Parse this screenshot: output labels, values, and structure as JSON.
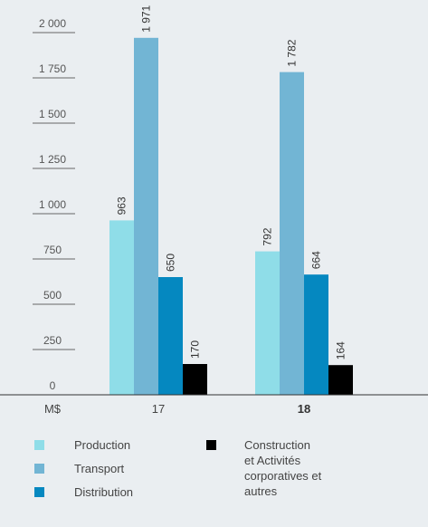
{
  "chart_data": {
    "type": "bar",
    "unit_label": "M$",
    "categories": [
      "17",
      "18"
    ],
    "bold_category": "18",
    "ylim": [
      0,
      2000
    ],
    "yticks": [
      {
        "value": 0,
        "label": "0"
      },
      {
        "value": 250,
        "label": "250"
      },
      {
        "value": 500,
        "label": "500"
      },
      {
        "value": 750,
        "label": "750"
      },
      {
        "value": 1000,
        "label": "1 000"
      },
      {
        "value": 1250,
        "label": "1 250"
      },
      {
        "value": 1500,
        "label": "1 500"
      },
      {
        "value": 1750,
        "label": "1 750"
      },
      {
        "value": 2000,
        "label": "2 000"
      }
    ],
    "series": [
      {
        "name": "Production",
        "color": "#8fdde8",
        "values": [
          963,
          792
        ],
        "labels": [
          "963",
          "792"
        ]
      },
      {
        "name": "Transport",
        "color": "#72b5d4",
        "values": [
          1971,
          1782
        ],
        "labels": [
          "1 971",
          "1 782"
        ]
      },
      {
        "name": "Distribution",
        "color": "#0588c0",
        "values": [
          650,
          664
        ],
        "labels": [
          "650",
          "664"
        ]
      },
      {
        "name": "Construction\net Activités\ncorporatives et\nautres",
        "color": "#000000",
        "values": [
          170,
          164
        ],
        "labels": [
          "170",
          "164"
        ]
      }
    ]
  }
}
